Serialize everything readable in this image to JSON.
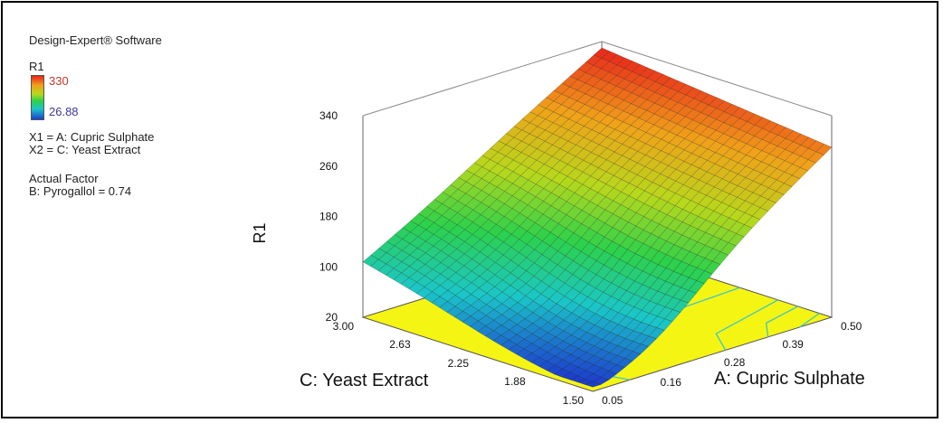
{
  "legend": {
    "software": "Design-Expert® Software",
    "response": "R1",
    "max": "330",
    "min": "26.88",
    "max_color": "#c0392b",
    "min_color": "#3b3b9b",
    "x1": "X1 = A: Cupric Sulphate",
    "x2": "X2 = C: Yeast Extract",
    "actual_factor_title": "Actual Factor",
    "actual_factor": "B: Pyrogallol = 0.74"
  },
  "chart_data": {
    "type": "surface3d",
    "title": "",
    "zlabel": "R1",
    "xlabel": "A: Cupric Sulphate",
    "ylabel": "C: Yeast Extract",
    "x_ticks": [
      "0.05",
      "0.16",
      "0.28",
      "0.39",
      "0.50"
    ],
    "y_ticks": [
      "1.50",
      "1.88",
      "2.25",
      "2.63",
      "3.00"
    ],
    "z_ticks": [
      "20",
      "100",
      "180",
      "260",
      "340"
    ],
    "xlim": [
      0.05,
      0.5
    ],
    "ylim": [
      1.5,
      3.0
    ],
    "zlim": [
      20,
      340
    ],
    "surface_corners": [
      {
        "A": 0.05,
        "C": 1.5,
        "R1": 35
      },
      {
        "A": 0.05,
        "C": 3.0,
        "R1": 110
      },
      {
        "A": 0.5,
        "C": 1.5,
        "R1": 290
      },
      {
        "A": 0.5,
        "C": 3.0,
        "R1": 330
      }
    ],
    "surface_min": {
      "A": 0.16,
      "C": 1.88,
      "R1": 26.88
    },
    "floor_color": "#f5f514",
    "contour_color": "#3cc6c6",
    "colormap": [
      "#1c3fcf",
      "#1bc6c9",
      "#2cd14b",
      "#b7d81c",
      "#f0a21a",
      "#e8251b"
    ]
  }
}
